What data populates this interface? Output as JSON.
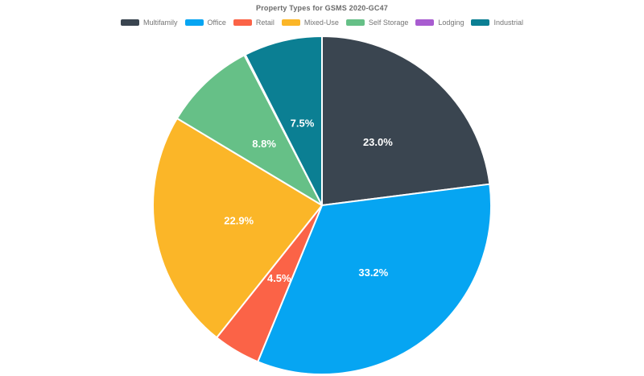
{
  "page": {
    "background_color": "#ffffff",
    "title_text_color": "#6a6a6a",
    "legend_text_color": "#757575"
  },
  "chart_data": {
    "type": "pie",
    "title": "Property Types for GSMS 2020-GC47",
    "legend_position": "top",
    "direction": "clockwise",
    "start_angle_deg": 0,
    "total_percent": 100.0,
    "slice_border_color": "#ffffff",
    "slice_label_color": "#ffffff",
    "slices": [
      {
        "name": "Multifamily",
        "value": 23.0,
        "label": "23.0%",
        "color": "#3A4550"
      },
      {
        "name": "Office",
        "value": 33.2,
        "label": "33.2%",
        "color": "#06A5F2"
      },
      {
        "name": "Retail",
        "value": 4.5,
        "label": "4.5%",
        "color": "#FB6347"
      },
      {
        "name": "Mixed-Use",
        "value": 22.9,
        "label": "22.9%",
        "color": "#FBB628"
      },
      {
        "name": "Self Storage",
        "value": 8.8,
        "label": "8.8%",
        "color": "#66C087"
      },
      {
        "name": "Lodging",
        "value": 0.1,
        "label": "",
        "color": "#A85CD0"
      },
      {
        "name": "Industrial",
        "value": 7.5,
        "label": "7.5%",
        "color": "#0B7F93"
      }
    ]
  }
}
